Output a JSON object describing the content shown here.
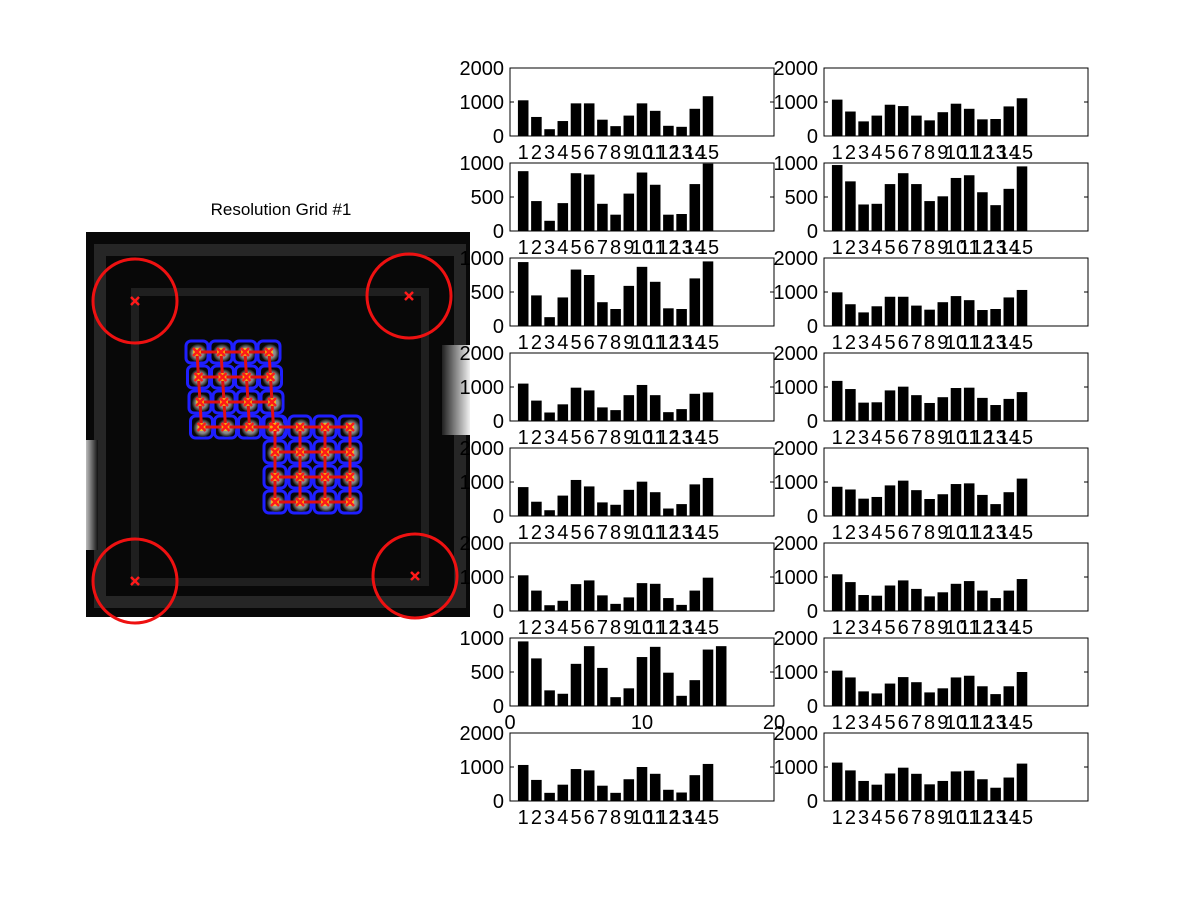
{
  "figure": {
    "image_title": "Resolution Grid #1"
  },
  "chart_data": [
    {
      "type": "bar",
      "panel": "1,1",
      "xticklabels": [
        "1",
        "2",
        "3",
        "4",
        "5",
        "6",
        "7",
        "8",
        "9",
        "10",
        "11",
        "12",
        "13",
        "14",
        "15"
      ],
      "yticks": [
        "0",
        "1000",
        "2000"
      ],
      "ylim": [
        0,
        2000
      ],
      "values": [
        1050,
        560,
        200,
        440,
        960,
        960,
        480,
        290,
        600,
        960,
        740,
        300,
        270,
        800,
        1170
      ]
    },
    {
      "type": "bar",
      "panel": "1,2",
      "xticklabels": [
        "1",
        "2",
        "3",
        "4",
        "5",
        "6",
        "7",
        "8",
        "9",
        "10",
        "11",
        "12",
        "13",
        "14",
        "15"
      ],
      "yticks": [
        "0",
        "1000",
        "2000"
      ],
      "ylim": [
        0,
        2000
      ],
      "values": [
        1070,
        720,
        430,
        600,
        920,
        880,
        600,
        460,
        700,
        950,
        800,
        490,
        500,
        870,
        1110
      ]
    },
    {
      "type": "bar",
      "panel": "2,1",
      "xticklabels": [
        "1",
        "2",
        "3",
        "4",
        "5",
        "6",
        "7",
        "8",
        "9",
        "10",
        "11",
        "12",
        "13",
        "14",
        "15"
      ],
      "yticks": [
        "0",
        "500",
        "1000"
      ],
      "ylim": [
        0,
        1000
      ],
      "values": [
        880,
        440,
        150,
        410,
        850,
        830,
        400,
        240,
        550,
        860,
        680,
        240,
        250,
        690,
        990
      ]
    },
    {
      "type": "bar",
      "panel": "2,2",
      "xticklabels": [
        "1",
        "2",
        "3",
        "4",
        "5",
        "6",
        "7",
        "8",
        "9",
        "10",
        "11",
        "12",
        "13",
        "14",
        "15"
      ],
      "yticks": [
        "0",
        "500",
        "1000"
      ],
      "ylim": [
        0,
        1000
      ],
      "values": [
        970,
        730,
        390,
        400,
        690,
        850,
        690,
        440,
        510,
        780,
        820,
        570,
        380,
        620,
        950
      ]
    },
    {
      "type": "bar",
      "panel": "3,1",
      "xticklabels": [
        "1",
        "2",
        "3",
        "4",
        "5",
        "6",
        "7",
        "8",
        "9",
        "10",
        "11",
        "12",
        "13",
        "14",
        "15"
      ],
      "yticks": [
        "0",
        "500",
        "1000"
      ],
      "ylim": [
        0,
        1000
      ],
      "values": [
        940,
        450,
        130,
        420,
        830,
        750,
        350,
        250,
        590,
        870,
        650,
        260,
        250,
        700,
        950
      ]
    },
    {
      "type": "bar",
      "panel": "3,2",
      "xticklabels": [
        "1",
        "2",
        "3",
        "4",
        "5",
        "6",
        "7",
        "8",
        "9",
        "10",
        "11",
        "12",
        "13",
        "14",
        "15"
      ],
      "yticks": [
        "0",
        "1000",
        "2000"
      ],
      "ylim": [
        0,
        2000
      ],
      "values": [
        990,
        640,
        400,
        580,
        860,
        860,
        600,
        480,
        700,
        880,
        760,
        470,
        500,
        840,
        1060
      ]
    },
    {
      "type": "bar",
      "panel": "4,1",
      "xticklabels": [
        "1",
        "2",
        "3",
        "4",
        "5",
        "6",
        "7",
        "8",
        "9",
        "10",
        "11",
        "12",
        "13",
        "14",
        "15"
      ],
      "yticks": [
        "0",
        "1000",
        "2000"
      ],
      "ylim": [
        0,
        2000
      ],
      "values": [
        1100,
        600,
        250,
        490,
        980,
        900,
        400,
        320,
        760,
        1060,
        760,
        260,
        350,
        800,
        840
      ]
    },
    {
      "type": "bar",
      "panel": "4,2",
      "xticklabels": [
        "1",
        "2",
        "3",
        "4",
        "5",
        "6",
        "7",
        "8",
        "9",
        "10",
        "11",
        "12",
        "13",
        "14",
        "15"
      ],
      "yticks": [
        "0",
        "1000",
        "2000"
      ],
      "ylim": [
        0,
        2000
      ],
      "values": [
        1180,
        940,
        540,
        550,
        900,
        1010,
        760,
        530,
        700,
        970,
        980,
        680,
        470,
        650,
        850
      ]
    },
    {
      "type": "bar",
      "panel": "5,1",
      "xticklabels": [
        "1",
        "2",
        "3",
        "4",
        "5",
        "6",
        "7",
        "8",
        "9",
        "10",
        "11",
        "12",
        "13",
        "14",
        "15"
      ],
      "yticks": [
        "0",
        "1000",
        "2000"
      ],
      "ylim": [
        0,
        2000
      ],
      "values": [
        850,
        420,
        170,
        600,
        1060,
        870,
        400,
        330,
        770,
        1010,
        700,
        220,
        350,
        930,
        1120
      ]
    },
    {
      "type": "bar",
      "panel": "5,2",
      "xticklabels": [
        "1",
        "2",
        "3",
        "4",
        "5",
        "6",
        "7",
        "8",
        "9",
        "10",
        "11",
        "12",
        "13",
        "14",
        "15"
      ],
      "yticks": [
        "0",
        "1000",
        "2000"
      ],
      "ylim": [
        0,
        2000
      ],
      "values": [
        860,
        780,
        510,
        560,
        900,
        1040,
        760,
        500,
        640,
        940,
        960,
        620,
        350,
        700,
        1100
      ]
    },
    {
      "type": "bar",
      "panel": "6,1",
      "xticklabels": [
        "1",
        "2",
        "3",
        "4",
        "5",
        "6",
        "7",
        "8",
        "9",
        "10",
        "11",
        "12",
        "13",
        "14",
        "15"
      ],
      "yticks": [
        "0",
        "1000",
        "2000"
      ],
      "ylim": [
        0,
        2000
      ],
      "values": [
        1050,
        600,
        170,
        300,
        790,
        900,
        460,
        210,
        400,
        820,
        800,
        380,
        180,
        600,
        980
      ]
    },
    {
      "type": "bar",
      "panel": "6,2",
      "xticklabels": [
        "1",
        "2",
        "3",
        "4",
        "5",
        "6",
        "7",
        "8",
        "9",
        "10",
        "11",
        "12",
        "13",
        "14",
        "15"
      ],
      "yticks": [
        "0",
        "1000",
        "2000"
      ],
      "ylim": [
        0,
        2000
      ],
      "values": [
        1080,
        850,
        470,
        450,
        750,
        900,
        650,
        430,
        550,
        800,
        880,
        600,
        380,
        600,
        940
      ]
    },
    {
      "type": "bar",
      "panel": "7,1",
      "xticklabels": [
        "0",
        "10",
        "20"
      ],
      "xlim": [
        0,
        20
      ],
      "xtick_values": [
        0,
        10,
        20
      ],
      "yticks": [
        "0",
        "500",
        "1000"
      ],
      "ylim": [
        0,
        1000
      ],
      "values": [
        950,
        700,
        230,
        180,
        620,
        880,
        560,
        130,
        260,
        720,
        870,
        490,
        150,
        380,
        830,
        880
      ]
    },
    {
      "type": "bar",
      "panel": "7,2",
      "xticklabels": [
        "1",
        "2",
        "3",
        "4",
        "5",
        "6",
        "7",
        "8",
        "9",
        "10",
        "11",
        "12",
        "13",
        "14",
        "15"
      ],
      "yticks": [
        "0",
        "1000",
        "2000"
      ],
      "ylim": [
        0,
        2000
      ],
      "values": [
        1040,
        840,
        430,
        370,
        660,
        850,
        700,
        400,
        520,
        840,
        890,
        580,
        350,
        580,
        1000
      ]
    },
    {
      "type": "bar",
      "panel": "8,1",
      "xticklabels": [
        "1",
        "2",
        "3",
        "4",
        "5",
        "6",
        "7",
        "8",
        "9",
        "10",
        "11",
        "12",
        "13",
        "14",
        "15"
      ],
      "yticks": [
        "0",
        "1000",
        "2000"
      ],
      "ylim": [
        0,
        2000
      ],
      "values": [
        1060,
        620,
        240,
        480,
        940,
        900,
        450,
        240,
        640,
        1000,
        800,
        330,
        250,
        760,
        1090
      ]
    },
    {
      "type": "bar",
      "panel": "8,2",
      "xticklabels": [
        "1",
        "2",
        "3",
        "4",
        "5",
        "6",
        "7",
        "8",
        "9",
        "10",
        "11",
        "12",
        "13",
        "14",
        "15"
      ],
      "yticks": [
        "0",
        "1000",
        "2000"
      ],
      "ylim": [
        0,
        2000
      ],
      "values": [
        1130,
        900,
        590,
        480,
        810,
        980,
        800,
        490,
        590,
        870,
        890,
        640,
        390,
        690,
        1100
      ]
    }
  ]
}
